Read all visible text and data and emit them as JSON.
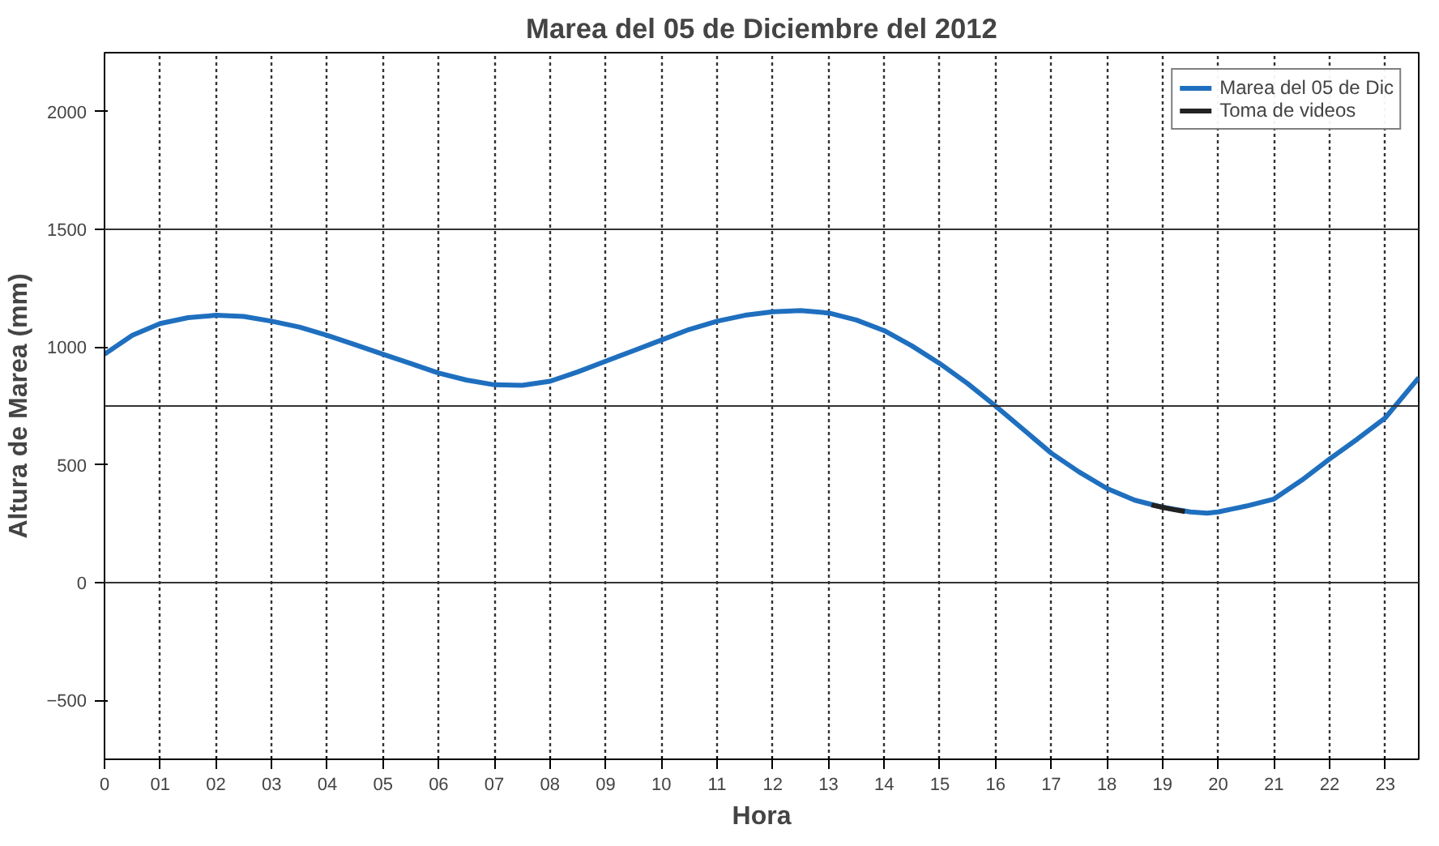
{
  "chart_data": {
    "type": "line",
    "title": "Marea del 05 de Diciembre del 2012",
    "xlabel": "Hora",
    "ylabel": "Altura de Marea (mm)",
    "xlim": [
      0,
      23.6
    ],
    "ylim": [
      -750,
      2250
    ],
    "xticks": [
      0,
      {
        "value": 1,
        "label": "01"
      },
      {
        "value": 2,
        "label": "02"
      },
      {
        "value": 3,
        "label": "03"
      },
      {
        "value": 4,
        "label": "04"
      },
      {
        "value": 5,
        "label": "05"
      },
      {
        "value": 6,
        "label": "06"
      },
      {
        "value": 7,
        "label": "07"
      },
      {
        "value": 8,
        "label": "08"
      },
      {
        "value": 9,
        "label": "09"
      },
      10,
      11,
      12,
      13,
      14,
      15,
      16,
      17,
      18,
      19,
      20,
      21,
      22,
      23
    ],
    "yticks": [
      -500,
      0,
      500,
      1000,
      1500,
      2000
    ],
    "grid": "x",
    "legend": "top right",
    "line_style": "solid",
    "marker": "none",
    "ref_lines": [
      {
        "axis": "y",
        "value": 1500,
        "color": "#333333"
      },
      {
        "axis": "y",
        "value": 750,
        "color": "#333333"
      },
      {
        "axis": "y",
        "value": 0,
        "color": "#333333"
      }
    ],
    "series": [
      {
        "name": "Marea del 05 de Dic",
        "color": "#1f6fbf",
        "x": [
          0,
          0.5,
          1,
          1.5,
          2,
          2.5,
          3,
          3.5,
          4,
          4.5,
          5,
          5.5,
          6,
          6.5,
          7,
          7.5,
          8,
          8.5,
          9,
          9.5,
          10,
          10.5,
          11,
          11.5,
          12,
          12.5,
          13,
          13.5,
          14,
          14.5,
          15,
          15.5,
          16,
          16.5,
          17,
          17.5,
          18,
          18.5,
          19,
          19.5,
          19.8,
          20,
          20.5,
          21,
          21.5,
          22,
          22.5,
          23,
          23.6
        ],
        "values": [
          970,
          1050,
          1100,
          1125,
          1135,
          1130,
          1110,
          1085,
          1050,
          1010,
          970,
          930,
          890,
          860,
          840,
          838,
          855,
          895,
          940,
          985,
          1030,
          1075,
          1110,
          1135,
          1150,
          1155,
          1145,
          1115,
          1070,
          1005,
          930,
          845,
          750,
          650,
          550,
          470,
          400,
          350,
          320,
          300,
          295,
          300,
          325,
          355,
          435,
          525,
          610,
          700,
          870
        ]
      },
      {
        "name": "Toma de videos",
        "color": "#222222",
        "x": [
          18.8,
          19.0,
          19.2,
          19.4
        ],
        "values": [
          330,
          320,
          310,
          302
        ]
      }
    ]
  }
}
